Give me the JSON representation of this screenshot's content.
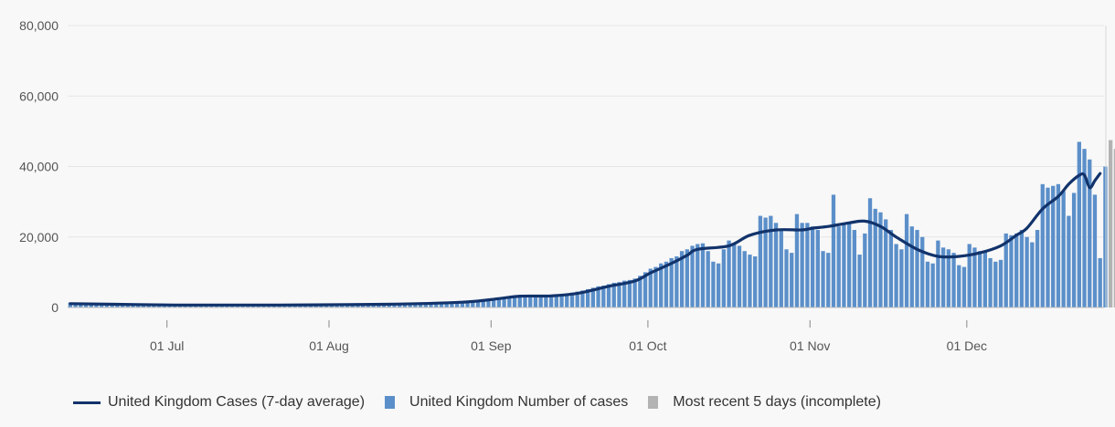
{
  "chart_data": {
    "type": "bar",
    "title": "",
    "xlabel": "",
    "ylabel": "",
    "ylim": [
      0,
      80000
    ],
    "yticks": [
      0,
      20000,
      40000,
      60000,
      80000
    ],
    "ytick_labels": [
      "0",
      "20,000",
      "40,000",
      "60,000",
      "80,000"
    ],
    "x_start_date": "2020-06-12",
    "xticks": [
      {
        "label": "01 Jul",
        "day_index": 19
      },
      {
        "label": "01 Aug",
        "day_index": 50
      },
      {
        "label": "01 Sep",
        "day_index": 81
      },
      {
        "label": "01 Oct",
        "day_index": 111
      },
      {
        "label": "01 Nov",
        "day_index": 142
      },
      {
        "label": "01 Dec",
        "day_index": 172
      }
    ],
    "series": [
      {
        "name": "United Kingdom Number of cases",
        "type": "bar",
        "color": "#5b8fc9",
        "values": [
          1400,
          1400,
          1400,
          1300,
          1300,
          1200,
          1200,
          1100,
          1100,
          1100,
          1000,
          1000,
          1000,
          950,
          950,
          900,
          900,
          850,
          850,
          800,
          800,
          800,
          750,
          750,
          700,
          700,
          700,
          700,
          700,
          650,
          650,
          650,
          650,
          650,
          650,
          650,
          700,
          700,
          700,
          700,
          700,
          700,
          750,
          750,
          750,
          750,
          750,
          800,
          800,
          800,
          850,
          850,
          850,
          900,
          900,
          900,
          950,
          950,
          950,
          1000,
          1000,
          1000,
          1050,
          1050,
          1100,
          1100,
          1100,
          1150,
          1150,
          1200,
          1200,
          1250,
          1300,
          1350,
          1400,
          1450,
          1500,
          1600,
          1700,
          1800,
          2000,
          2200,
          2500,
          2700,
          2900,
          3000,
          3200,
          3400,
          3500,
          3600,
          3600,
          3500,
          3600,
          3700,
          3800,
          4000,
          4200,
          4500,
          4800,
          5200,
          5600,
          6000,
          6200,
          6600,
          7000,
          7200,
          7600,
          7800,
          8200,
          9000,
          10000,
          11000,
          11500,
          12500,
          13000,
          14000,
          14500,
          16000,
          16500,
          17500,
          18000,
          18200,
          16000,
          13000,
          12500,
          16500,
          19000,
          18000,
          17500,
          16000,
          15000,
          14500,
          26000,
          25500,
          26000,
          24000,
          22000,
          16500,
          15500,
          26500,
          24000,
          24000,
          23000,
          22000,
          16000,
          15500,
          32000,
          23000,
          23500,
          24000,
          22000,
          15000,
          21000,
          31000,
          28000,
          27000,
          25000,
          22000,
          18000,
          16500,
          26500,
          23000,
          22000,
          20000,
          13000,
          12500,
          19000,
          17000,
          16500,
          15500,
          12000,
          11500,
          18000,
          17000,
          16000,
          16000,
          14000,
          13000,
          13500,
          21000,
          20500,
          21000,
          22000,
          20000,
          18500,
          22000,
          35000,
          34000,
          34500,
          35000,
          33000,
          26000,
          32500,
          47000,
          45000,
          42000,
          32000,
          14000,
          40000
        ],
        "incomplete_values": [
          47500,
          45000
        ]
      },
      {
        "name": "Most recent 5 days (incomplete)",
        "type": "bar",
        "color": "#b3b3b3"
      },
      {
        "name": "United Kingdom Cases (7-day average)",
        "type": "line",
        "color": "#12336b",
        "points": [
          [
            0,
            1100
          ],
          [
            20,
            700
          ],
          [
            40,
            700
          ],
          [
            60,
            900
          ],
          [
            75,
            1500
          ],
          [
            82,
            2500
          ],
          [
            86,
            3200
          ],
          [
            92,
            3300
          ],
          [
            97,
            4000
          ],
          [
            103,
            6000
          ],
          [
            108,
            7500
          ],
          [
            111,
            9800
          ],
          [
            115,
            12500
          ],
          [
            118,
            14800
          ],
          [
            120,
            16500
          ],
          [
            126,
            17500
          ],
          [
            130,
            20500
          ],
          [
            135,
            22000
          ],
          [
            140,
            22000
          ],
          [
            142,
            22500
          ],
          [
            145,
            23000
          ],
          [
            149,
            24000
          ],
          [
            152,
            24500
          ],
          [
            155,
            23000
          ],
          [
            158,
            20000
          ],
          [
            162,
            16500
          ],
          [
            166,
            14500
          ],
          [
            170,
            14500
          ],
          [
            174,
            15500
          ],
          [
            178,
            17500
          ],
          [
            181,
            20500
          ],
          [
            183,
            22500
          ],
          [
            186,
            28000
          ],
          [
            189,
            31500
          ],
          [
            191,
            35000
          ],
          [
            193,
            37500
          ],
          [
            194,
            37600
          ],
          [
            195,
            34000
          ],
          [
            196,
            36000
          ],
          [
            197,
            38000
          ]
        ]
      }
    ],
    "legend": [
      "United Kingdom Cases (7-day average)",
      "United Kingdom Number of cases",
      "Most recent 5 days (incomplete)"
    ]
  }
}
